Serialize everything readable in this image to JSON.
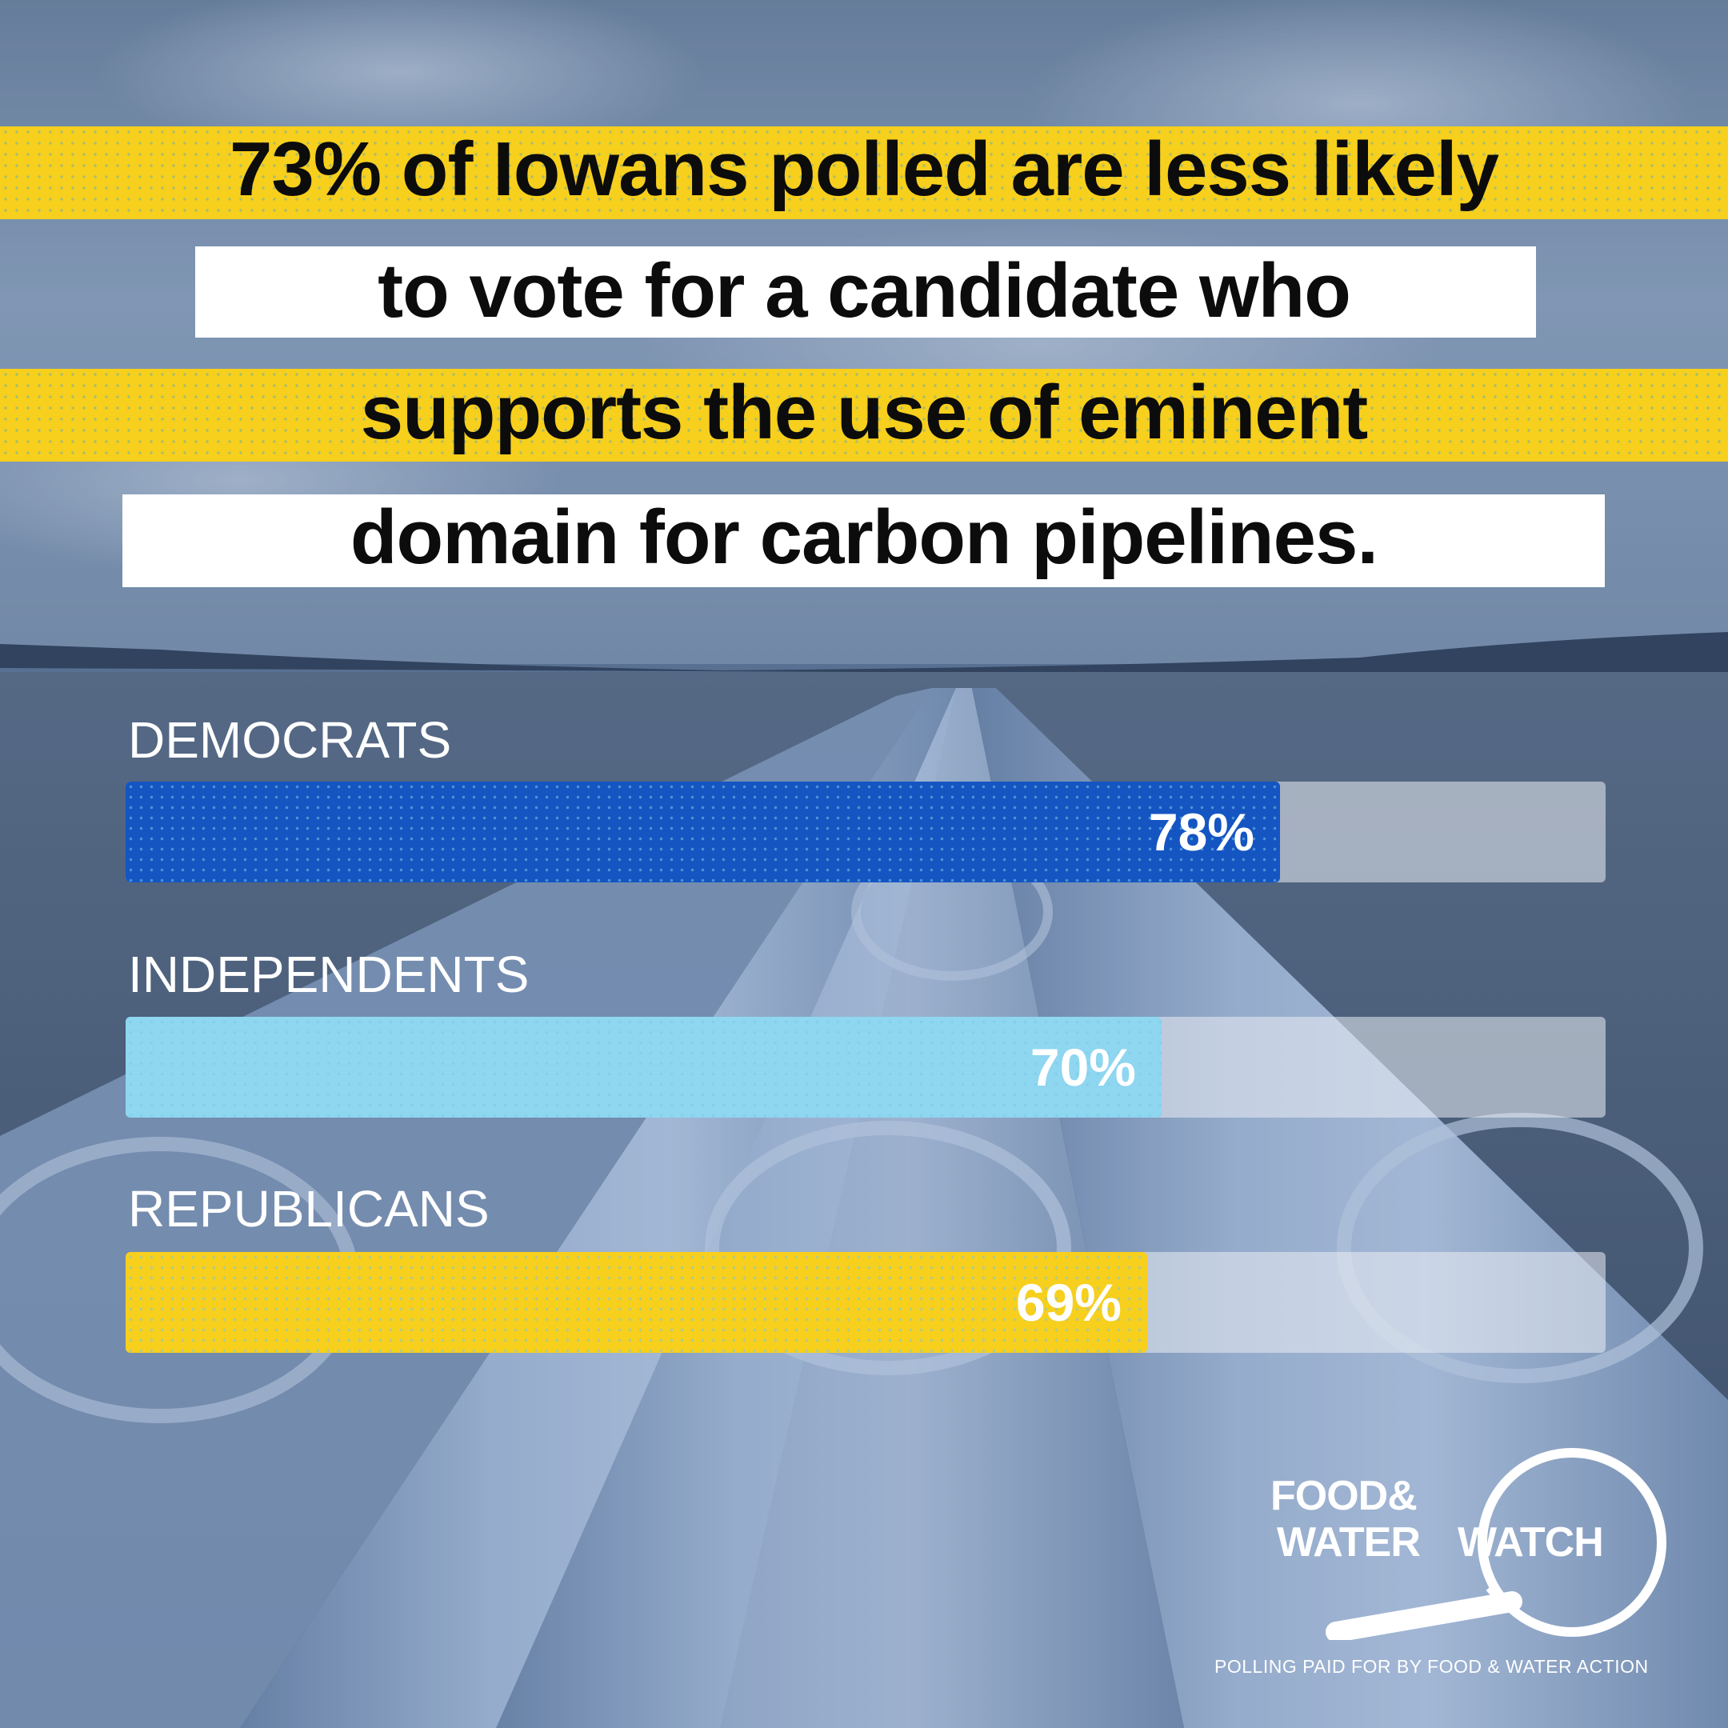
{
  "headline": {
    "line1_part1": "73% of Iowans polled are ",
    "line1_emph": "less likely",
    "line2": "to vote for a candidate who",
    "line3": "supports the use of eminent",
    "line4": "domain for carbon pipelines."
  },
  "colors": {
    "headline_yellow": "#f7cf1d",
    "democrats": "#1455c2",
    "independents": "#8fd6f0",
    "republicans": "#f7cf1d",
    "track": "#ebeef4"
  },
  "chart_data": {
    "type": "bar",
    "orientation": "horizontal",
    "categories": [
      "DEMOCRATS",
      "INDEPENDENTS",
      "REPUBLICANS"
    ],
    "values": [
      78,
      70,
      69
    ],
    "value_labels": [
      "78%",
      "70%",
      "69%"
    ],
    "xlim": [
      0,
      100
    ],
    "grid": false
  },
  "logo": {
    "word1": "FOOD&",
    "word2": "WATER",
    "word3": "WATCH",
    "icon": "magnifying-glass-icon"
  },
  "disclaimer": "POLLING PAID FOR BY FOOD & WATER ACTION"
}
